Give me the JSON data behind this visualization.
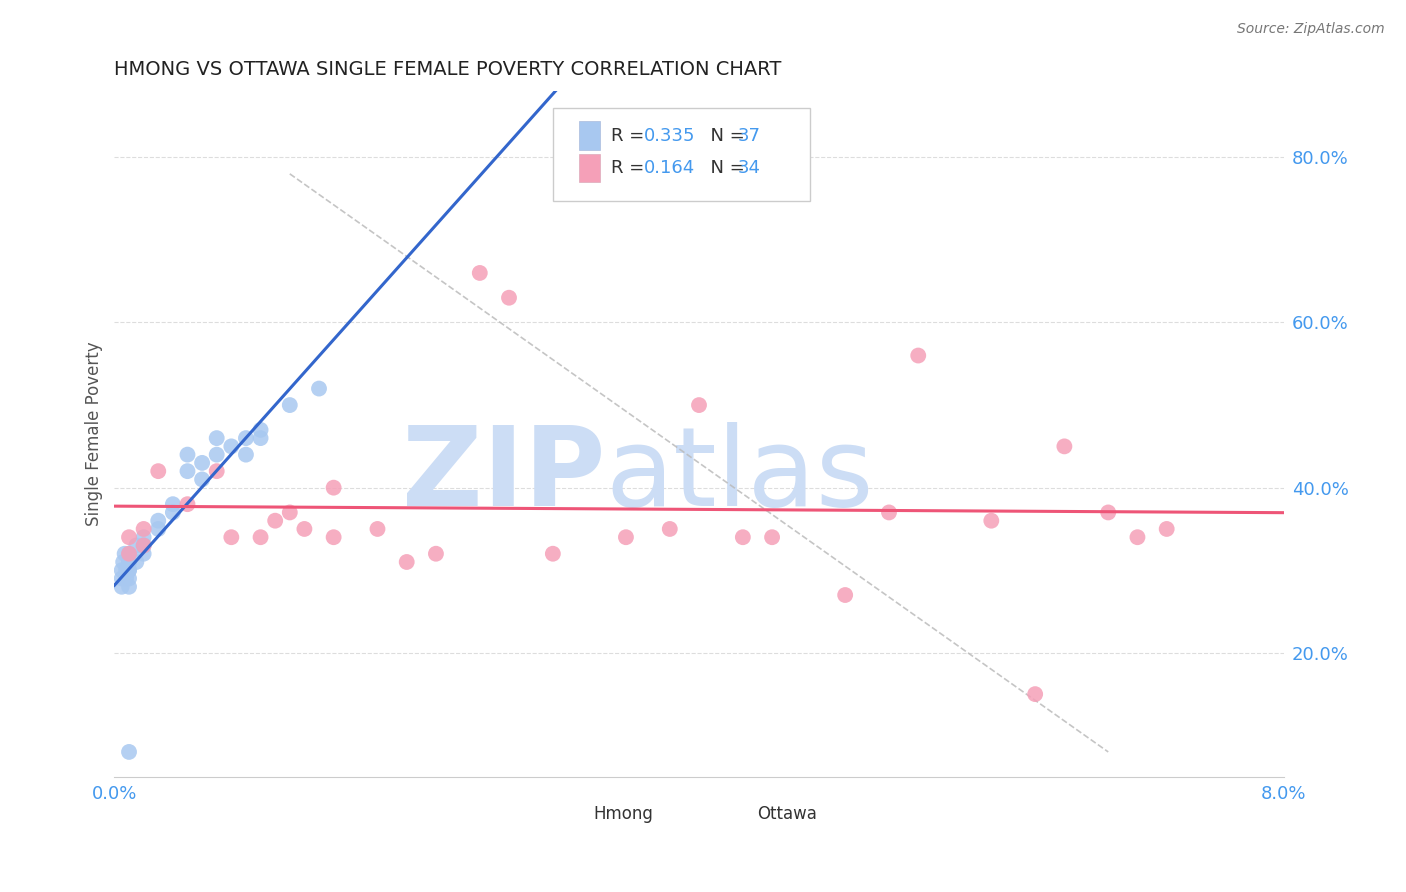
{
  "title": "HMONG VS OTTAWA SINGLE FEMALE POVERTY CORRELATION CHART",
  "source_text": "Source: ZipAtlas.com",
  "ylabel": "Single Female Poverty",
  "xlim": [
    0.0,
    0.08
  ],
  "ylim": [
    0.05,
    0.88
  ],
  "y_ticks": [
    0.2,
    0.4,
    0.6,
    0.8
  ],
  "y_tick_labels": [
    "20.0%",
    "40.0%",
    "60.0%",
    "80.0%"
  ],
  "hmong_R": 0.335,
  "hmong_N": 37,
  "ottawa_R": 0.164,
  "ottawa_N": 34,
  "hmong_color": "#a8c8f0",
  "ottawa_color": "#f5a0b8",
  "hmong_line_color": "#3366cc",
  "ottawa_line_color": "#ee5577",
  "ref_line_color": "#bbbbbb",
  "watermark_color": "#ccddf5",
  "watermark_text": "ZIPatlas",
  "background_color": "#ffffff",
  "grid_color": "#dddddd",
  "title_color": "#222222",
  "axis_label_color": "#555555",
  "tick_color": "#4499ee",
  "hmong_x": [
    0.0005,
    0.0005,
    0.0005,
    0.0006,
    0.0007,
    0.0008,
    0.0008,
    0.001,
    0.001,
    0.001,
    0.001,
    0.001,
    0.001,
    0.001,
    0.0015,
    0.0015,
    0.002,
    0.002,
    0.002,
    0.003,
    0.003,
    0.004,
    0.004,
    0.005,
    0.005,
    0.006,
    0.006,
    0.007,
    0.007,
    0.008,
    0.009,
    0.009,
    0.01,
    0.01,
    0.012,
    0.014,
    0.001
  ],
  "hmong_y": [
    0.3,
    0.29,
    0.28,
    0.31,
    0.32,
    0.3,
    0.29,
    0.31,
    0.3,
    0.29,
    0.28,
    0.31,
    0.3,
    0.32,
    0.33,
    0.31,
    0.32,
    0.34,
    0.33,
    0.36,
    0.35,
    0.38,
    0.37,
    0.42,
    0.44,
    0.41,
    0.43,
    0.44,
    0.46,
    0.45,
    0.44,
    0.46,
    0.47,
    0.46,
    0.5,
    0.52,
    0.08
  ],
  "ottawa_x": [
    0.001,
    0.001,
    0.002,
    0.002,
    0.003,
    0.005,
    0.007,
    0.008,
    0.01,
    0.011,
    0.012,
    0.013,
    0.015,
    0.015,
    0.018,
    0.02,
    0.022,
    0.025,
    0.027,
    0.03,
    0.035,
    0.038,
    0.04,
    0.043,
    0.045,
    0.05,
    0.053,
    0.055,
    0.06,
    0.063,
    0.065,
    0.068,
    0.07,
    0.072
  ],
  "ottawa_y": [
    0.34,
    0.32,
    0.35,
    0.33,
    0.42,
    0.38,
    0.42,
    0.34,
    0.34,
    0.36,
    0.37,
    0.35,
    0.4,
    0.34,
    0.35,
    0.31,
    0.32,
    0.66,
    0.63,
    0.32,
    0.34,
    0.35,
    0.5,
    0.34,
    0.34,
    0.27,
    0.37,
    0.56,
    0.36,
    0.15,
    0.45,
    0.37,
    0.34,
    0.35
  ],
  "dashed_line": [
    [
      0.012,
      0.78
    ],
    [
      0.068,
      0.08
    ]
  ]
}
